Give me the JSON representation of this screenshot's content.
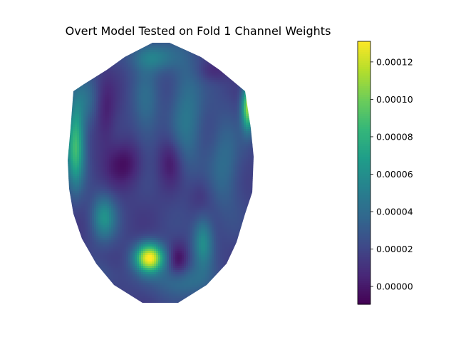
{
  "chart_data": {
    "type": "heatmap",
    "title": "Overt Model Tested on Fold 1 Channel Weights",
    "colormap": "viridis",
    "colorbar": {
      "vmin": -9.5e-06,
      "vmax": 0.000131,
      "ticks": [
        0.0,
        2e-05,
        4e-05,
        6e-05,
        8e-05,
        0.0001,
        0.00012
      ],
      "tick_labels": [
        "0.00000",
        "0.00002",
        "0.00004",
        "0.00006",
        "0.00008",
        "0.00010",
        "0.00012"
      ]
    },
    "hotspots": [
      {
        "region": "lower-center",
        "value": 0.000131
      },
      {
        "region": "upper-right edge",
        "value": 0.00011
      },
      {
        "region": "left edge",
        "value": 9e-05
      },
      {
        "region": "lower-left",
        "value": 7e-05
      },
      {
        "region": "lower-right",
        "value": 8e-05
      }
    ],
    "xlabel": "",
    "ylabel": "",
    "grid": false,
    "axes_visible": false
  }
}
